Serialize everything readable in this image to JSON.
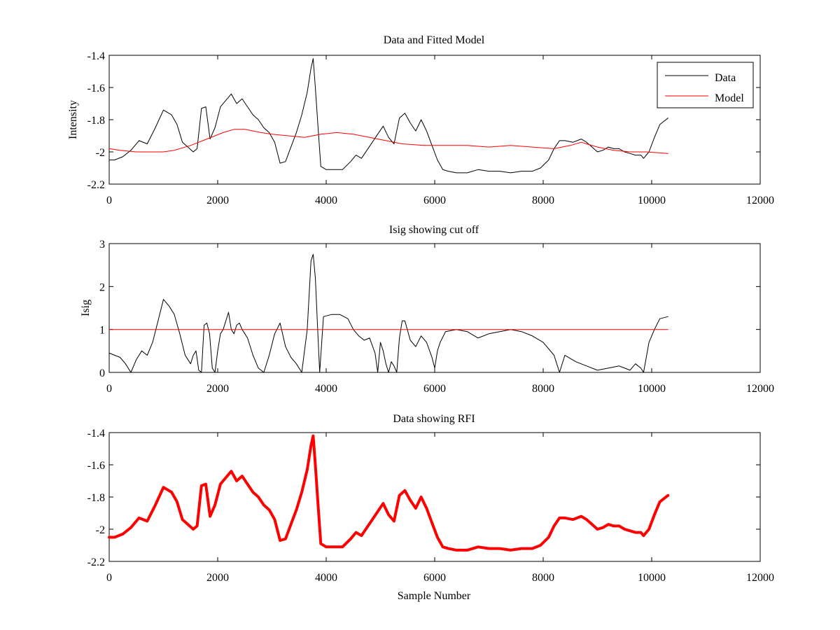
{
  "chart_data": [
    {
      "type": "line",
      "title": "Data and Fitted Model",
      "xlabel": "",
      "ylabel": "Intensity",
      "xlim": [
        0,
        12000
      ],
      "ylim": [
        -2.2,
        -1.4
      ],
      "x_ticks": [
        0,
        2000,
        4000,
        6000,
        8000,
        10000,
        12000
      ],
      "x_tick_labels": [
        "0",
        "2000",
        "4000",
        "6000",
        "8000",
        "10000",
        "12000"
      ],
      "y_ticks": [
        -1.4,
        -1.6,
        -1.8,
        -2,
        -2.2
      ],
      "y_tick_labels": [
        "-1.4",
        "-1.6",
        "-1.8",
        "-2",
        "-2.2"
      ],
      "legend": {
        "position": "top-right",
        "entries": [
          {
            "label": "Data",
            "color": "#000000"
          },
          {
            "label": "Model",
            "color": "#ff0000"
          }
        ]
      },
      "series": [
        {
          "name": "Data",
          "color": "#000000",
          "x": [
            0,
            100,
            250,
            400,
            550,
            700,
            850,
            1000,
            1150,
            1250,
            1350,
            1450,
            1550,
            1620,
            1700,
            1780,
            1860,
            1950,
            2050,
            2150,
            2250,
            2350,
            2450,
            2550,
            2650,
            2750,
            2850,
            2950,
            3050,
            3150,
            3250,
            3350,
            3450,
            3550,
            3650,
            3720,
            3760,
            3800,
            3850,
            3900,
            4000,
            4150,
            4300,
            4450,
            4550,
            4650,
            4750,
            4850,
            4950,
            5050,
            5150,
            5250,
            5350,
            5450,
            5550,
            5650,
            5750,
            5850,
            5950,
            6050,
            6150,
            6250,
            6400,
            6600,
            6800,
            7000,
            7200,
            7400,
            7600,
            7800,
            7950,
            8100,
            8200,
            8300,
            8400,
            8550,
            8700,
            8800,
            8900,
            9000,
            9100,
            9200,
            9300,
            9400,
            9500,
            9600,
            9700,
            9800,
            9850,
            9950,
            10050,
            10150,
            10300
          ],
          "y": [
            -2.05,
            -2.05,
            -2.03,
            -1.99,
            -1.93,
            -1.95,
            -1.85,
            -1.74,
            -1.77,
            -1.83,
            -1.94,
            -1.97,
            -2.0,
            -1.98,
            -1.73,
            -1.72,
            -1.92,
            -1.85,
            -1.72,
            -1.68,
            -1.64,
            -1.7,
            -1.67,
            -1.72,
            -1.77,
            -1.8,
            -1.85,
            -1.88,
            -1.94,
            -2.07,
            -2.06,
            -1.97,
            -1.88,
            -1.77,
            -1.63,
            -1.48,
            -1.42,
            -1.6,
            -1.85,
            -2.09,
            -2.11,
            -2.11,
            -2.11,
            -2.06,
            -2.02,
            -2.04,
            -1.99,
            -1.94,
            -1.89,
            -1.84,
            -1.91,
            -1.95,
            -1.79,
            -1.76,
            -1.82,
            -1.87,
            -1.8,
            -1.87,
            -1.96,
            -2.05,
            -2.11,
            -2.12,
            -2.13,
            -2.13,
            -2.11,
            -2.12,
            -2.12,
            -2.13,
            -2.12,
            -2.12,
            -2.1,
            -2.05,
            -1.98,
            -1.93,
            -1.93,
            -1.94,
            -1.92,
            -1.94,
            -1.97,
            -2.0,
            -1.99,
            -1.97,
            -1.98,
            -1.98,
            -2.0,
            -2.01,
            -2.02,
            -2.02,
            -2.04,
            -2.0,
            -1.91,
            -1.83,
            -1.79
          ]
        },
        {
          "name": "Model",
          "color": "#ff0000",
          "x": [
            0,
            200,
            500,
            800,
            1000,
            1200,
            1500,
            1800,
            2100,
            2300,
            2500,
            2800,
            3000,
            3300,
            3600,
            3900,
            4200,
            4500,
            4800,
            5100,
            5400,
            5800,
            6200,
            6600,
            7000,
            7400,
            7800,
            8200,
            8500,
            8700,
            8800,
            9000,
            9300,
            9600,
            9900,
            10300
          ],
          "y": [
            -1.98,
            -1.99,
            -2.0,
            -2.0,
            -2.0,
            -1.99,
            -1.96,
            -1.92,
            -1.88,
            -1.86,
            -1.86,
            -1.88,
            -1.89,
            -1.9,
            -1.91,
            -1.89,
            -1.88,
            -1.89,
            -1.91,
            -1.93,
            -1.95,
            -1.96,
            -1.96,
            -1.96,
            -1.97,
            -1.96,
            -1.97,
            -1.98,
            -1.96,
            -1.94,
            -1.95,
            -1.97,
            -1.99,
            -2.0,
            -2.0,
            -2.01
          ]
        }
      ]
    },
    {
      "type": "line",
      "title": "Isig showing cut off",
      "xlabel": "",
      "ylabel": "Isig",
      "xlim": [
        0,
        12000
      ],
      "ylim": [
        0,
        3
      ],
      "x_ticks": [
        0,
        2000,
        4000,
        6000,
        8000,
        10000,
        12000
      ],
      "x_tick_labels": [
        "0",
        "2000",
        "4000",
        "6000",
        "8000",
        "10000",
        "12000"
      ],
      "y_ticks": [
        0,
        1,
        2,
        3
      ],
      "y_tick_labels": [
        "0",
        "1",
        "2",
        "3"
      ],
      "series": [
        {
          "color": "#000000",
          "x": [
            0,
            100,
            200,
            300,
            400,
            500,
            600,
            700,
            800,
            900,
            1000,
            1100,
            1200,
            1300,
            1400,
            1500,
            1550,
            1600,
            1650,
            1700,
            1750,
            1800,
            1850,
            1900,
            1950,
            2000,
            2050,
            2100,
            2200,
            2250,
            2300,
            2350,
            2400,
            2450,
            2500,
            2550,
            2650,
            2750,
            2850,
            2950,
            3050,
            3150,
            3250,
            3350,
            3450,
            3550,
            3650,
            3720,
            3760,
            3800,
            3850,
            3880,
            3950,
            4100,
            4250,
            4400,
            4500,
            4600,
            4700,
            4800,
            4900,
            4950,
            5000,
            5050,
            5100,
            5150,
            5200,
            5250,
            5300,
            5350,
            5400,
            5450,
            5550,
            5650,
            5750,
            5850,
            5950,
            6000,
            6050,
            6100,
            6200,
            6400,
            6600,
            6800,
            7000,
            7200,
            7400,
            7600,
            7800,
            8000,
            8200,
            8300,
            8400,
            8600,
            8800,
            9000,
            9200,
            9400,
            9600,
            9700,
            9800,
            9850,
            9950,
            10050,
            10150,
            10300
          ],
          "y": [
            0.45,
            0.4,
            0.35,
            0.2,
            0.0,
            0.3,
            0.5,
            0.4,
            0.7,
            1.2,
            1.7,
            1.55,
            1.35,
            0.9,
            0.4,
            0.2,
            0.4,
            0.5,
            0.05,
            0.0,
            1.1,
            1.15,
            0.9,
            0.1,
            0.0,
            0.5,
            0.9,
            1.0,
            1.4,
            1.0,
            0.9,
            1.1,
            1.15,
            1.0,
            0.9,
            0.8,
            0.4,
            0.1,
            0.0,
            0.4,
            0.9,
            1.15,
            0.6,
            0.35,
            0.2,
            0.0,
            1.0,
            2.6,
            2.75,
            2.2,
            0.8,
            0.0,
            1.3,
            1.35,
            1.35,
            1.25,
            1.0,
            0.85,
            0.75,
            0.8,
            0.45,
            0.0,
            0.7,
            0.5,
            0.2,
            0.0,
            0.25,
            0.15,
            0.0,
            0.8,
            1.2,
            1.2,
            0.75,
            0.6,
            0.85,
            0.7,
            0.35,
            0.1,
            0.5,
            0.7,
            0.95,
            1.0,
            0.95,
            0.8,
            0.9,
            0.95,
            1.0,
            0.95,
            0.85,
            0.7,
            0.4,
            0.0,
            0.4,
            0.25,
            0.15,
            0.05,
            0.1,
            0.15,
            0.05,
            0.2,
            0.1,
            0.0,
            0.7,
            1.0,
            1.25,
            1.3
          ]
        },
        {
          "color": "#ff0000",
          "x": [
            0,
            10300
          ],
          "y": [
            1,
            1
          ]
        }
      ]
    },
    {
      "type": "line",
      "title": "Data showing RFI",
      "xlabel": "Sample Number",
      "ylabel": "",
      "xlim": [
        0,
        12000
      ],
      "ylim": [
        -2.2,
        -1.4
      ],
      "x_ticks": [
        0,
        2000,
        4000,
        6000,
        8000,
        10000,
        12000
      ],
      "x_tick_labels": [
        "0",
        "2000",
        "4000",
        "6000",
        "8000",
        "10000",
        "12000"
      ],
      "y_ticks": [
        -1.4,
        -1.6,
        -1.8,
        -2,
        -2.2
      ],
      "y_tick_labels": [
        "-1.4",
        "-1.6",
        "-1.8",
        "-2",
        "-2.2"
      ],
      "series": [
        {
          "color": "#ff0000",
          "x": [
            0,
            100,
            250,
            400,
            550,
            700,
            850,
            1000,
            1150,
            1250,
            1350,
            1450,
            1550,
            1620,
            1700,
            1780,
            1860,
            1950,
            2050,
            2150,
            2250,
            2350,
            2450,
            2550,
            2650,
            2750,
            2850,
            2950,
            3050,
            3150,
            3250,
            3350,
            3450,
            3550,
            3650,
            3720,
            3760,
            3800,
            3850,
            3900,
            4000,
            4150,
            4300,
            4450,
            4550,
            4650,
            4750,
            4850,
            4950,
            5050,
            5150,
            5250,
            5350,
            5450,
            5550,
            5650,
            5750,
            5850,
            5950,
            6050,
            6150,
            6250,
            6400,
            6600,
            6800,
            7000,
            7200,
            7400,
            7600,
            7800,
            7950,
            8100,
            8200,
            8300,
            8400,
            8550,
            8700,
            8800,
            8900,
            9000,
            9100,
            9200,
            9300,
            9400,
            9500,
            9600,
            9700,
            9800,
            9850,
            9950,
            10050,
            10150,
            10300
          ],
          "y": [
            -2.05,
            -2.05,
            -2.03,
            -1.99,
            -1.93,
            -1.95,
            -1.85,
            -1.74,
            -1.77,
            -1.83,
            -1.94,
            -1.97,
            -2.0,
            -1.98,
            -1.73,
            -1.72,
            -1.92,
            -1.85,
            -1.72,
            -1.68,
            -1.64,
            -1.7,
            -1.67,
            -1.72,
            -1.77,
            -1.8,
            -1.85,
            -1.88,
            -1.94,
            -2.07,
            -2.06,
            -1.97,
            -1.88,
            -1.77,
            -1.63,
            -1.48,
            -1.42,
            -1.6,
            -1.85,
            -2.09,
            -2.11,
            -2.11,
            -2.11,
            -2.06,
            -2.02,
            -2.04,
            -1.99,
            -1.94,
            -1.89,
            -1.84,
            -1.91,
            -1.95,
            -1.79,
            -1.76,
            -1.82,
            -1.87,
            -1.8,
            -1.87,
            -1.96,
            -2.05,
            -2.11,
            -2.12,
            -2.13,
            -2.13,
            -2.11,
            -2.12,
            -2.12,
            -2.13,
            -2.12,
            -2.12,
            -2.1,
            -2.05,
            -1.98,
            -1.93,
            -1.93,
            -1.94,
            -1.92,
            -1.94,
            -1.97,
            -2.0,
            -1.99,
            -1.97,
            -1.98,
            -1.98,
            -2.0,
            -2.01,
            -2.02,
            -2.02,
            -2.04,
            -2.0,
            -1.91,
            -1.83,
            -1.79
          ]
        }
      ]
    }
  ]
}
